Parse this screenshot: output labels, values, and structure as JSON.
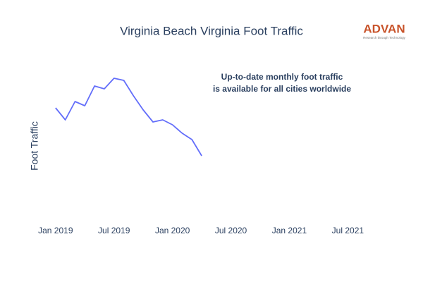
{
  "chart_data": {
    "type": "line",
    "title": "Virginia Beach Virginia Foot Traffic",
    "y_label": "Foot Traffic",
    "annotation": [
      "Up-to-date monthly foot traffic",
      "is available for all cities worldwide"
    ],
    "logo": {
      "name": "ADVAN",
      "tagline": "Research through Technology"
    },
    "x": [
      "2019-01",
      "2019-02",
      "2019-03",
      "2019-04",
      "2019-05",
      "2019-06",
      "2019-07",
      "2019-08",
      "2019-09",
      "2019-10",
      "2019-11",
      "2019-12",
      "2020-01",
      "2020-02",
      "2020-03",
      "2020-04"
    ],
    "series": [
      {
        "name": "Foot Traffic",
        "color": "#636efa",
        "values": [
          157,
          140,
          166,
          160,
          188,
          184,
          199,
          196,
          174,
          154,
          137,
          140,
          133,
          121,
          112,
          89
        ]
      }
    ],
    "xlim": [
      "2018-12",
      "2021-09"
    ],
    "xticks": [
      {
        "value": "2019-01",
        "label": "Jan 2019"
      },
      {
        "value": "2019-07",
        "label": "Jul 2019"
      },
      {
        "value": "2020-01",
        "label": "Jan 2020"
      },
      {
        "value": "2020-07",
        "label": "Jul 2020"
      },
      {
        "value": "2021-01",
        "label": "Jan 2021"
      },
      {
        "value": "2021-07",
        "label": "Jul 2021"
      }
    ],
    "ylim": [
      0,
      250
    ],
    "grid": false
  }
}
